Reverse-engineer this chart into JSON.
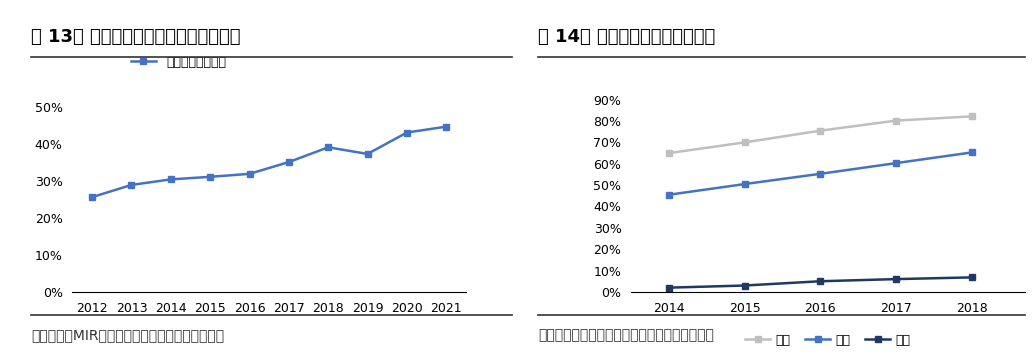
{
  "chart1": {
    "title": "图 13： 中国金切机床数控化率逐年提升",
    "legend_label": "金切机床数控化率",
    "source": "数据来源：MIR、国家统计局、国泰君安证券研究",
    "years": [
      2012,
      2013,
      2014,
      2015,
      2016,
      2017,
      2018,
      2019,
      2020,
      2021
    ],
    "values": [
      0.257,
      0.29,
      0.305,
      0.312,
      0.32,
      0.352,
      0.392,
      0.374,
      0.432,
      0.448
    ],
    "line_color": "#4472C4",
    "marker": "s",
    "ylim": [
      0,
      0.55
    ],
    "yticks": [
      0,
      0.1,
      0.2,
      0.3,
      0.4,
      0.5
    ]
  },
  "chart2": {
    "title": "图 14： 中国高端机床国产化率低",
    "source": "数据来源：前瞻产业研究院、国泰君安证券研究",
    "years": [
      2014,
      2015,
      2016,
      2017,
      2018
    ],
    "series": {
      "低端": {
        "values": [
          0.65,
          0.7,
          0.755,
          0.802,
          0.822
        ],
        "color": "#BFBFBF",
        "marker": "s"
      },
      "中端": {
        "values": [
          0.455,
          0.505,
          0.553,
          0.603,
          0.653
        ],
        "color": "#4472C4",
        "marker": "s"
      },
      "高端": {
        "values": [
          0.02,
          0.03,
          0.05,
          0.06,
          0.068
        ],
        "color": "#1F3864",
        "marker": "s"
      }
    },
    "ylim": [
      0,
      0.95
    ],
    "yticks": [
      0,
      0.1,
      0.2,
      0.3,
      0.4,
      0.5,
      0.6,
      0.7,
      0.8,
      0.9
    ]
  },
  "title_fontsize": 13,
  "source_fontsize": 10,
  "tick_fontsize": 9,
  "legend_fontsize": 9,
  "bg_color": "#FFFFFF",
  "title_color": "#000000",
  "source_color": "#333333",
  "divider_color": "#333333"
}
